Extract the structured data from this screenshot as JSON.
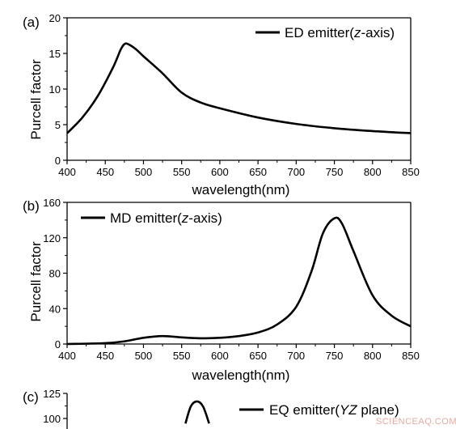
{
  "chart_data": [
    {
      "type": "line",
      "panel_label": "(a)",
      "xlabel": "wavelength(nm)",
      "ylabel": "Purcell factor",
      "xlim": [
        400,
        850
      ],
      "ylim": [
        0,
        20
      ],
      "xticks": [
        400,
        450,
        500,
        550,
        600,
        650,
        700,
        750,
        800,
        850
      ],
      "yticks": [
        0,
        5,
        10,
        15,
        20
      ],
      "legend_position": "top-right",
      "series": [
        {
          "name": "ED emitter(z-axis)",
          "name_prefix": "ED emitter(",
          "name_italic": "z",
          "name_suffix": "-axis)",
          "x": [
            400,
            420,
            440,
            460,
            470,
            475,
            480,
            490,
            500,
            525,
            550,
            575,
            600,
            650,
            700,
            750,
            800,
            850
          ],
          "y": [
            3.8,
            6.0,
            9.0,
            13.0,
            15.5,
            16.3,
            16.3,
            15.6,
            14.6,
            12.2,
            9.5,
            8.1,
            7.3,
            6.0,
            5.1,
            4.5,
            4.1,
            3.8
          ]
        }
      ]
    },
    {
      "type": "line",
      "panel_label": "(b)",
      "xlabel": "wavelength(nm)",
      "ylabel": "Purcell factor",
      "xlim": [
        400,
        850
      ],
      "ylim": [
        0,
        160
      ],
      "xticks": [
        400,
        450,
        500,
        550,
        600,
        650,
        700,
        750,
        800,
        850
      ],
      "yticks": [
        0,
        40,
        80,
        120,
        160
      ],
      "legend_position": "top-left",
      "series": [
        {
          "name": "MD emitter(z-axis)",
          "name_prefix": "MD emitter(",
          "name_italic": "z",
          "name_suffix": "-axis)",
          "x": [
            400,
            450,
            475,
            500,
            525,
            550,
            575,
            600,
            625,
            650,
            675,
            700,
            720,
            735,
            750,
            760,
            775,
            800,
            825,
            850
          ],
          "y": [
            0,
            1,
            3,
            7,
            9,
            7.5,
            6.5,
            7,
            9,
            13,
            22,
            42,
            82,
            125,
            142,
            136,
            105,
            55,
            32,
            20
          ]
        }
      ]
    },
    {
      "type": "line",
      "panel_label": "(c)",
      "xlabel": "",
      "ylabel": "",
      "xlim": [
        400,
        850
      ],
      "ylim": [
        0,
        125
      ],
      "yticks": [
        100,
        125
      ],
      "legend_position": "top-right",
      "series": [
        {
          "name": "EQ emitter(YZ plane)",
          "name_prefix": "EQ emitter(",
          "name_italic": "YZ",
          "name_suffix": " plane)",
          "x": [
            555,
            562,
            570,
            578,
            586
          ],
          "y": [
            95,
            112,
            117,
            112,
            95
          ]
        }
      ]
    }
  ],
  "watermark": "SCIENCEAQ.COM"
}
